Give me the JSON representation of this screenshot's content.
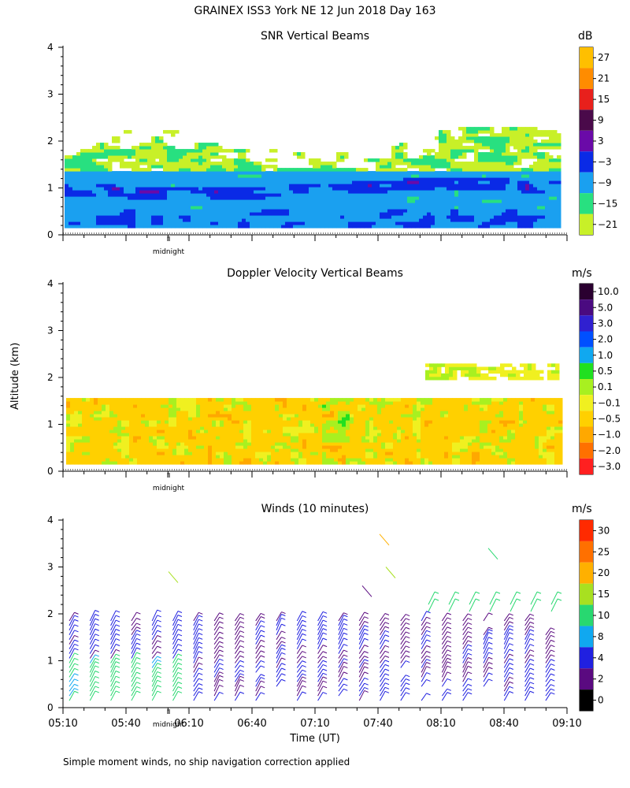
{
  "title": "GRAINEX ISS3 York NE  12 Jun 2018 Day 163",
  "ylabel": "Altitude (km)",
  "xlabel": "Time (UT)",
  "footnote": "Simple moment winds, no ship navigation correction applied",
  "midnight_label": "midnight",
  "colors": {
    "bg": "#ffffff"
  },
  "chart_data": [
    {
      "type": "heatmap",
      "title": "SNR Vertical Beams",
      "unit": "dB",
      "ylim": [
        0,
        4
      ],
      "yticks": [
        "0",
        "1",
        "2",
        "3",
        "4"
      ],
      "xlim": [
        "05:10",
        "09:10"
      ],
      "colorbar": {
        "labels": [
          "27",
          "21",
          "15",
          "9",
          "3",
          "−3",
          "−9",
          "−15",
          "−21"
        ],
        "colors": [
          "#ffbf00",
          "#ff8c00",
          "#e8201c",
          "#4a0a4a",
          "#6a0aa8",
          "#0a2ae6",
          "#1aa0f0",
          "#28e080",
          "#c8f028"
        ]
      }
    },
    {
      "type": "heatmap",
      "title": "Doppler Velocity Vertical Beams",
      "unit": "m/s",
      "ylim": [
        0,
        4
      ],
      "yticks": [
        "0",
        "1",
        "2",
        "3",
        "4"
      ],
      "xlim": [
        "05:10",
        "09:10"
      ],
      "colorbar": {
        "labels": [
          "10.0",
          "5.0",
          "3.0",
          "2.0",
          "1.0",
          "0.5",
          "0.1",
          "−0.1",
          "−0.5",
          "−1.0",
          "−2.0",
          "−3.0"
        ],
        "colors": [
          "#2a0030",
          "#4a0a80",
          "#3020d0",
          "#0050ff",
          "#10a8f0",
          "#20e020",
          "#a8f020",
          "#f0f020",
          "#ffd000",
          "#ffa800",
          "#ff7000",
          "#ff2020"
        ]
      }
    },
    {
      "type": "scatter",
      "title": "Winds (10 minutes)",
      "unit": "m/s",
      "ylim": [
        0,
        4
      ],
      "yticks": [
        "0",
        "1",
        "2",
        "3",
        "4"
      ],
      "xlim": [
        "05:10",
        "09:10"
      ],
      "xticks": [
        "05:10",
        "05:40",
        "06:10",
        "06:40",
        "07:10",
        "07:40",
        "08:10",
        "08:40",
        "09:10"
      ],
      "colorbar": {
        "labels": [
          "30",
          "25",
          "20",
          "15",
          "10",
          "8",
          "4",
          "2",
          "0"
        ],
        "colors": [
          "#ff2a00",
          "#ff7000",
          "#ffb000",
          "#a8e020",
          "#28d870",
          "#10a8f0",
          "#2020e0",
          "#5a0a80",
          "#000000"
        ]
      }
    }
  ]
}
